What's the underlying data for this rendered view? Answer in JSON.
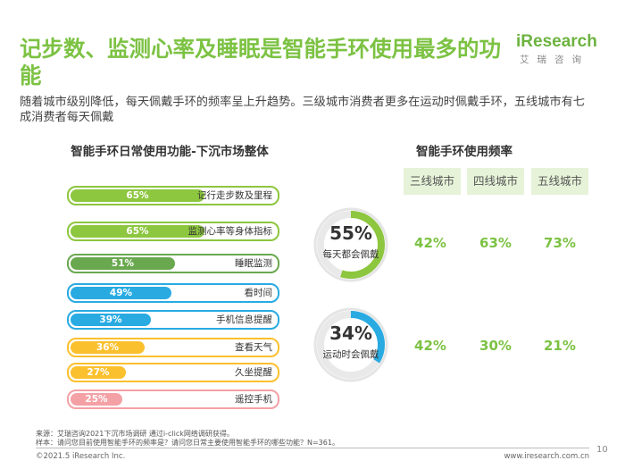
{
  "header": {
    "title": "记步数、监测心率及睡眠是智能手环使用最多的功能",
    "subtitle": "随着城市级别降低，每天佩戴手环的频率呈上升趋势。三级城市消费者更多在运动时佩戴手环，五线城市有七成消费者每天佩戴",
    "logo_text": "iResearch",
    "logo_sub": "艾瑞咨询"
  },
  "left_panel": {
    "title": "智能手环日常使用功能-下沉市场整体"
  },
  "right_panel": {
    "title": "智能手环使用频率",
    "cities": [
      "三线城市",
      "四线城市",
      "五线城市"
    ]
  },
  "colors": {
    "green": "#8dc63f",
    "dark_green": "#6aa84f",
    "blue": "#29abe2",
    "yellow": "#fbc02d",
    "pink": "#f4a1a6",
    "ring_green": "#8dc63f",
    "ring_blue": "#29abe2"
  },
  "chart_data": [
    {
      "type": "bar",
      "title": "智能手环日常使用功能-下沉市场整体",
      "categories": [
        "记行走步数及里程",
        "监测心率等身体指标",
        "睡眠监测",
        "看时间",
        "手机信息提醒",
        "查看天气",
        "久坐提醒",
        "遥控手机"
      ],
      "values": [
        65,
        65,
        51,
        49,
        39,
        36,
        27,
        25
      ],
      "value_labels": [
        "65%",
        "65%",
        "51%",
        "49%",
        "39%",
        "36%",
        "27%",
        "25%"
      ],
      "unit": "%",
      "bar_colors": [
        "#8dc63f",
        "#8dc63f",
        "#6aa84f",
        "#29abe2",
        "#29abe2",
        "#fbc02d",
        "#fbc02d",
        "#f4a1a6"
      ],
      "label_colors": [
        "#8dc63f",
        "#8dc63f",
        "#ffffff",
        "#29abe2",
        "#29abe2",
        "#ffffff",
        "#ffffff",
        "#ffffff"
      ]
    },
    {
      "type": "table",
      "title": "智能手环使用频率",
      "columns": [
        "三线城市",
        "四线城市",
        "五线城市"
      ],
      "rows": [
        {
          "name": "每天都会佩戴",
          "overall": 55,
          "overall_label": "55%",
          "values": [
            42,
            63,
            73
          ],
          "labels": [
            "42%",
            "63%",
            "73%"
          ]
        },
        {
          "name": "运动时会佩戴",
          "overall": 34,
          "overall_label": "34%",
          "values": [
            42,
            30,
            21
          ],
          "labels": [
            "42%",
            "30%",
            "21%"
          ]
        }
      ]
    }
  ],
  "footer": {
    "source": "来源：艾瑞咨询2021下沉市场调研 通过i-click网络调研获得。",
    "sample": "样本：请问您目前使用智能手环的频率是？请问您日常主要使用智能手环的哪些功能？N=361。",
    "copyright": "©2021.5 iResearch Inc.",
    "website": "www.iresearch.com.cn",
    "page": "10"
  }
}
